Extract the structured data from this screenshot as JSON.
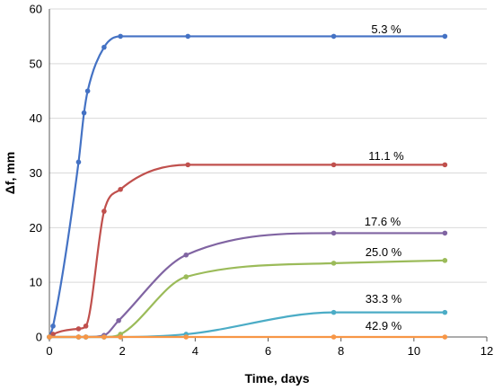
{
  "chart_data": {
    "type": "line",
    "xlabel": "Time, days",
    "ylabel": "Δf, mm",
    "xlim": [
      0,
      12
    ],
    "ylim": [
      0,
      60
    ],
    "xticks": [
      "0",
      "2",
      "4",
      "6",
      "8",
      "10",
      "12"
    ],
    "yticks": [
      "0",
      "10",
      "20",
      "30",
      "40",
      "50",
      "60"
    ],
    "grid": "horizontal",
    "series": [
      {
        "name": "5.3 %",
        "color": "#4472C4",
        "points": [
          [
            0,
            0
          ],
          [
            0.1,
            2
          ],
          [
            0.8,
            32
          ],
          [
            0.95,
            41
          ],
          [
            1.05,
            45
          ],
          [
            1.5,
            53
          ],
          [
            1.95,
            55
          ],
          [
            3.8,
            55
          ],
          [
            7.8,
            55
          ],
          [
            10.85,
            55
          ]
        ]
      },
      {
        "name": "11.1 %",
        "color": "#C0504D",
        "points": [
          [
            0,
            0
          ],
          [
            0.1,
            0.5
          ],
          [
            0.8,
            1.5
          ],
          [
            1.0,
            2
          ],
          [
            1.5,
            23
          ],
          [
            1.95,
            27
          ],
          [
            3.8,
            31.5
          ],
          [
            7.8,
            31.5
          ],
          [
            10.85,
            31.5
          ]
        ]
      },
      {
        "name": "17.6 %",
        "color": "#8064A2",
        "points": [
          [
            0,
            0
          ],
          [
            0.8,
            0
          ],
          [
            1.0,
            0
          ],
          [
            1.5,
            0.3
          ],
          [
            1.9,
            3
          ],
          [
            3.75,
            15
          ],
          [
            7.8,
            19
          ],
          [
            10.85,
            19
          ]
        ]
      },
      {
        "name": "25.0 %",
        "color": "#9BBB59",
        "points": [
          [
            0,
            0
          ],
          [
            0.8,
            0
          ],
          [
            1.0,
            0
          ],
          [
            1.5,
            0
          ],
          [
            1.95,
            0.5
          ],
          [
            3.75,
            11
          ],
          [
            7.8,
            13.5
          ],
          [
            10.85,
            14
          ]
        ]
      },
      {
        "name": "33.3 %",
        "color": "#4BACC6",
        "points": [
          [
            0,
            0
          ],
          [
            0.8,
            0
          ],
          [
            1.0,
            0
          ],
          [
            1.5,
            0
          ],
          [
            1.95,
            0
          ],
          [
            3.75,
            0.5
          ],
          [
            7.8,
            4.5
          ],
          [
            10.85,
            4.5
          ]
        ]
      },
      {
        "name": "42.9 %",
        "color": "#F79646",
        "points": [
          [
            0,
            0
          ],
          [
            0.8,
            0
          ],
          [
            1.0,
            0
          ],
          [
            1.5,
            0
          ],
          [
            1.95,
            0
          ],
          [
            3.75,
            0
          ],
          [
            7.8,
            0
          ],
          [
            10.85,
            0
          ]
        ]
      }
    ]
  }
}
